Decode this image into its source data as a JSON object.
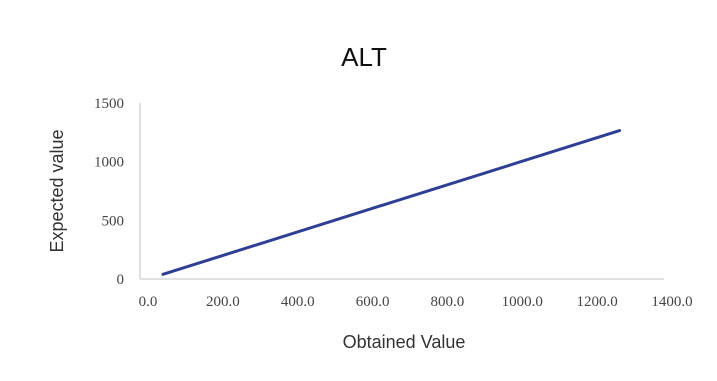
{
  "chart_data": {
    "type": "line",
    "title": "ALT",
    "xlabel": "Obtained Value",
    "ylabel": "Expected value",
    "xlim": [
      0,
      1400
    ],
    "ylim": [
      0,
      1500
    ],
    "x_ticks": [
      "0.0",
      "200.0",
      "400.0",
      "600.0",
      "800.0",
      "1000.0",
      "1200.0",
      "1400.0"
    ],
    "y_ticks": [
      "0",
      "500",
      "1000",
      "1500"
    ],
    "grid": false,
    "series": [
      {
        "x": [
          40,
          1260
        ],
        "y": [
          40,
          1265
        ],
        "color": "#2f3f95"
      }
    ]
  }
}
